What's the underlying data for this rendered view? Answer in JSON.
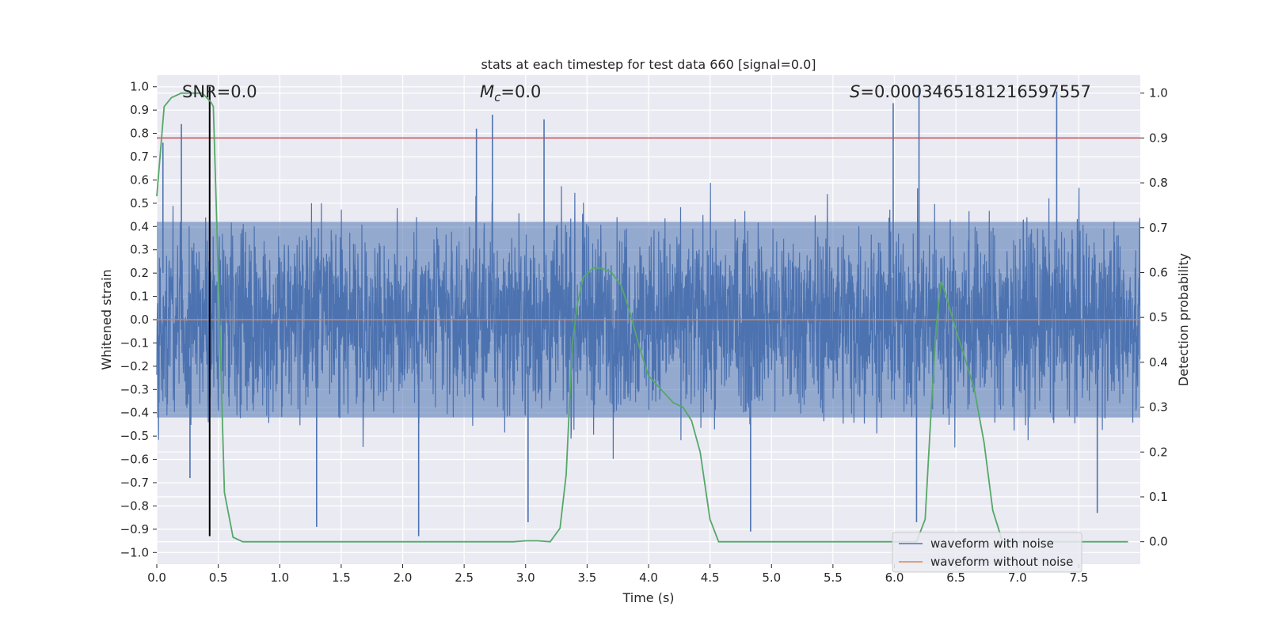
{
  "chart_data": {
    "type": "line",
    "title": "stats at each timestep for test data 660 [signal=0.0]",
    "xlabel": "Time (s)",
    "ylabel": "Whitened strain",
    "y2label": "Detection probability",
    "xlim": [
      0.0,
      8.0
    ],
    "ylim": [
      -1.05,
      1.05
    ],
    "y2lim": [
      -0.05,
      1.04
    ],
    "x_ticks": [
      0.0,
      0.5,
      1.0,
      1.5,
      2.0,
      2.5,
      3.0,
      3.5,
      4.0,
      4.5,
      5.0,
      5.5,
      6.0,
      6.5,
      7.0,
      7.5
    ],
    "x_tick_labels": [
      "0.0",
      "0.5",
      "1.0",
      "1.5",
      "2.0",
      "2.5",
      "3.0",
      "3.5",
      "4.0",
      "4.5",
      "5.0",
      "5.5",
      "6.0",
      "6.5",
      "7.0",
      "7.5"
    ],
    "y_ticks": [
      1.0,
      0.9,
      0.8,
      0.7,
      0.6,
      0.5,
      0.4,
      0.3,
      0.2,
      0.1,
      0.0,
      -0.1,
      -0.2,
      -0.3,
      -0.4,
      -0.5,
      -0.6,
      -0.7,
      -0.8,
      -0.9,
      -1.0
    ],
    "y_tick_labels": [
      "1.0",
      "0.9",
      "0.8",
      "0.7",
      "0.6",
      "0.5",
      "0.4",
      "0.3",
      "0.2",
      "0.1",
      "0.0",
      "−0.1",
      "−0.2",
      "−0.3",
      "−0.4",
      "−0.5",
      "−0.6",
      "−0.7",
      "−0.8",
      "−0.9",
      "−1.0"
    ],
    "y2_ticks": [
      1.0,
      0.9,
      0.8,
      0.7,
      0.6,
      0.5,
      0.4,
      0.3,
      0.2,
      0.1,
      0.0
    ],
    "y2_tick_labels": [
      "1.0",
      "0.9",
      "0.8",
      "0.7",
      "0.6",
      "0.5",
      "0.4",
      "0.3",
      "0.2",
      "0.1",
      "0.0"
    ],
    "grid": true,
    "legend": {
      "placement": "lower-right",
      "entries": [
        {
          "label": "waveform with noise",
          "color": "#4c72b0"
        },
        {
          "label": "waveform without noise",
          "color": "#dd8452"
        }
      ]
    },
    "annotations": {
      "snr": {
        "label": "SNR",
        "value": "0.0"
      },
      "mc": {
        "label": "M",
        "subscript": "c",
        "value": "0.0"
      },
      "s": {
        "label": "S",
        "value": "0.0003465181216597557"
      }
    },
    "series": [
      {
        "name": "waveform with noise",
        "axis": "left",
        "color": "#4c72b0",
        "style": "dense-noise",
        "typical_envelope": [
          -0.42,
          0.42
        ],
        "peaks": [
          {
            "x": 0.05,
            "y": 0.76
          },
          {
            "x": 0.2,
            "y": 0.84
          },
          {
            "x": 0.27,
            "y": -0.68
          },
          {
            "x": 1.3,
            "y": -0.89
          },
          {
            "x": 2.13,
            "y": -0.93
          },
          {
            "x": 2.6,
            "y": 0.82
          },
          {
            "x": 2.73,
            "y": 0.88
          },
          {
            "x": 3.02,
            "y": -0.87
          },
          {
            "x": 3.15,
            "y": 0.86
          },
          {
            "x": 4.83,
            "y": -0.91
          },
          {
            "x": 5.99,
            "y": 0.93
          },
          {
            "x": 6.2,
            "y": 1.0
          },
          {
            "x": 6.18,
            "y": -0.87
          },
          {
            "x": 7.32,
            "y": 0.98
          },
          {
            "x": 7.65,
            "y": -0.83
          }
        ]
      },
      {
        "name": "waveform without noise",
        "axis": "left",
        "color": "#dd8452",
        "x": [
          0.0,
          8.0
        ],
        "y": [
          0.0,
          0.0
        ]
      },
      {
        "name": "detection probability",
        "axis": "right",
        "color": "#55a868",
        "x": [
          0.0,
          0.06,
          0.12,
          0.2,
          0.3,
          0.37,
          0.44,
          0.46,
          0.5,
          0.55,
          0.62,
          0.7,
          1.0,
          2.0,
          2.9,
          3.0,
          3.1,
          3.2,
          3.28,
          3.33,
          3.38,
          3.42,
          3.47,
          3.55,
          3.62,
          3.7,
          3.78,
          3.85,
          3.93,
          4.0,
          4.1,
          4.2,
          4.28,
          4.35,
          4.42,
          4.5,
          4.57,
          4.65,
          5.0,
          6.0,
          6.18,
          6.25,
          6.3,
          6.34,
          6.38,
          6.42,
          6.48,
          6.55,
          6.65,
          6.73,
          6.8,
          6.88,
          7.0,
          7.9
        ],
        "y": [
          0.77,
          0.97,
          0.99,
          1.0,
          1.0,
          1.0,
          0.98,
          0.97,
          0.6,
          0.11,
          0.01,
          0.0,
          0.0,
          0.0,
          0.0,
          0.002,
          0.002,
          0.0,
          0.03,
          0.15,
          0.44,
          0.53,
          0.59,
          0.61,
          0.61,
          0.6,
          0.57,
          0.51,
          0.43,
          0.37,
          0.34,
          0.31,
          0.3,
          0.27,
          0.2,
          0.05,
          0.0,
          0.0,
          0.0,
          0.0,
          0.0,
          0.05,
          0.3,
          0.48,
          0.58,
          0.55,
          0.49,
          0.43,
          0.34,
          0.22,
          0.07,
          0.0,
          0.0,
          0.0
        ]
      }
    ],
    "reference_lines": [
      {
        "axis": "right",
        "orientation": "horizontal",
        "value": 0.9,
        "color": "#c44e52"
      },
      {
        "axis": "left",
        "orientation": "vertical",
        "value": 0.43,
        "from": -0.93,
        "to": 1.0,
        "color": "#000000"
      }
    ]
  }
}
